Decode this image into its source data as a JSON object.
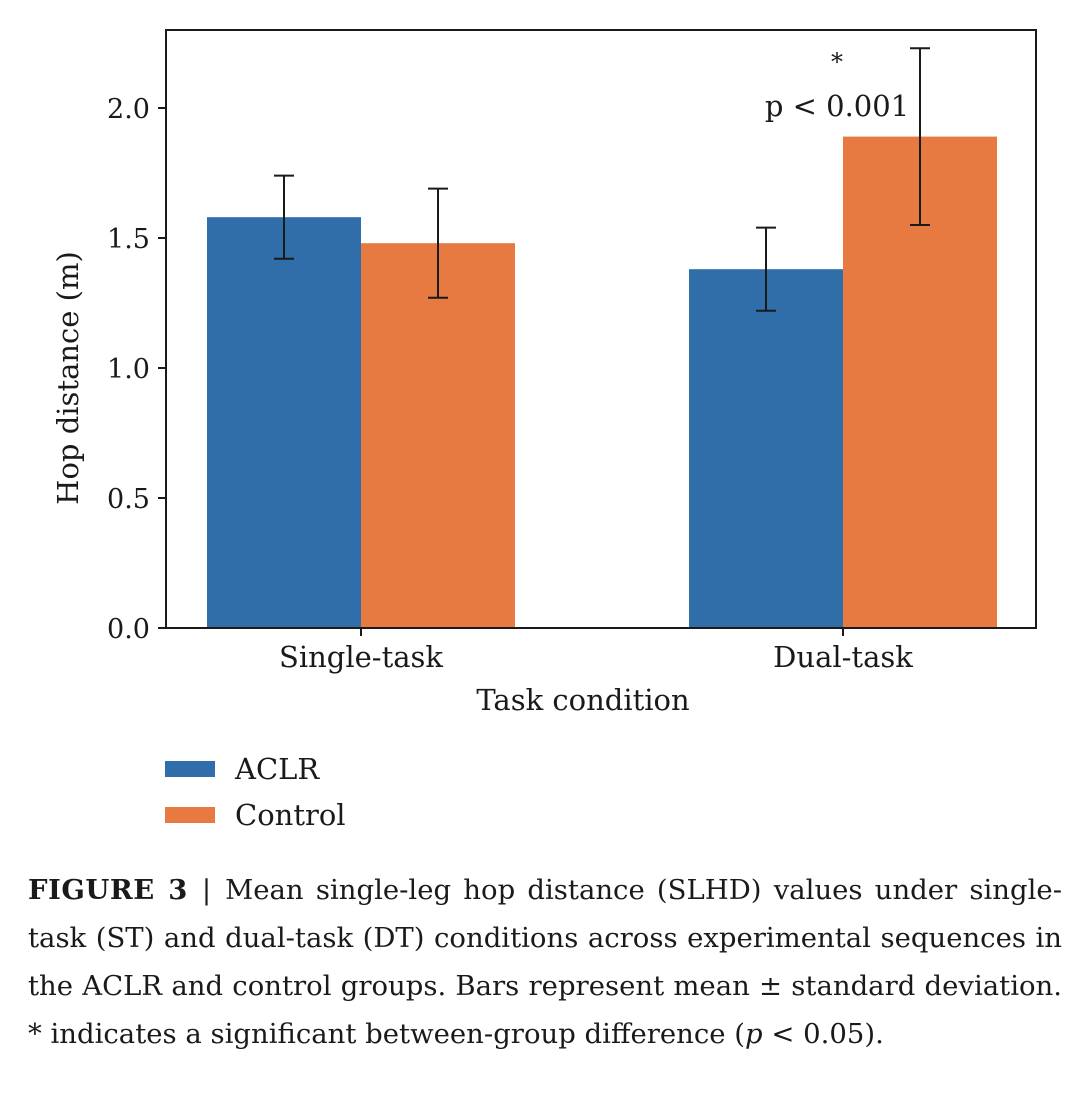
{
  "chart_data": {
    "type": "bar",
    "categories": [
      "Single-task",
      "Dual-task"
    ],
    "series": [
      {
        "name": "ACLR",
        "values": [
          1.58,
          1.38
        ],
        "errors": [
          0.16,
          0.16
        ],
        "color": "#2f6ea8"
      },
      {
        "name": "Control",
        "values": [
          1.48,
          1.89
        ],
        "errors": [
          0.21,
          0.34
        ],
        "color": "#e67a40"
      }
    ],
    "xlabel": "Task condition",
    "ylabel": "Hop distance (m)",
    "ylim": [
      0,
      2.3
    ],
    "yticks": [
      "0.0",
      "0.5",
      "1.0",
      "1.5",
      "2.0"
    ],
    "grid": false,
    "legend_position": "bottom-left",
    "annotation": {
      "category": "Dual-task",
      "star": "*",
      "text": "p < 0.001"
    }
  },
  "caption": {
    "label": "FIGURE 3",
    "separator": "|",
    "text": "Mean single-leg hop distance (SLHD) values under single-task (ST) and dual-task (DT) conditions across experimental sequences in the ACLR and control groups. Bars represent mean ± standard deviation. * indicates a significant between-group difference (",
    "p_symbol": "p",
    "text_end": " < 0.05)."
  }
}
